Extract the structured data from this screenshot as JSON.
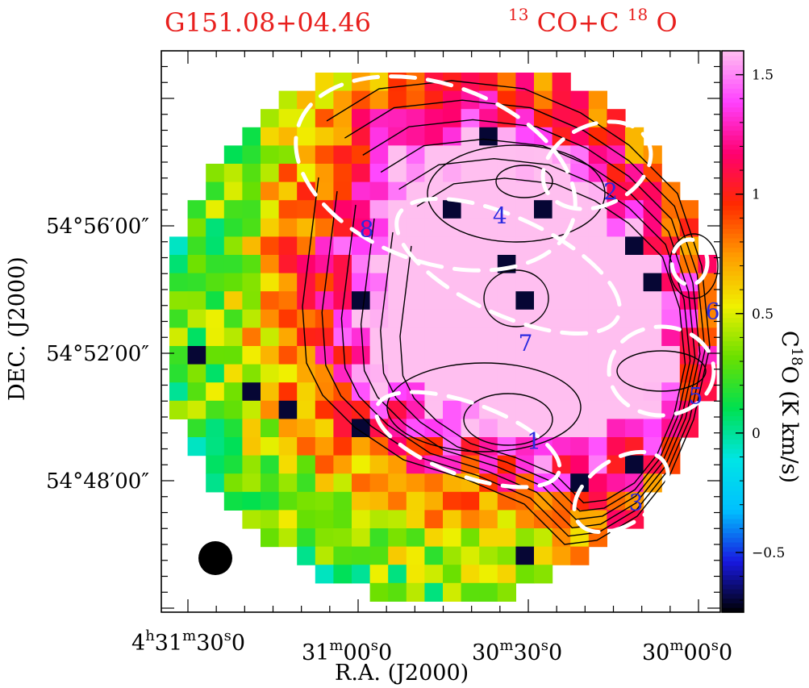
{
  "chart_data": {
    "type": "heatmap",
    "title_left": "G151.08+04.46",
    "title_right": {
      "base1": "13",
      "text1": "CO+C",
      "base2": "18",
      "text2": "O"
    },
    "xlabel": "R.A. (J2000)",
    "ylabel": "DEC. (J2000)",
    "colorbar_label": {
      "pre": "C",
      "sup": "18",
      "post": "O (K km/s)"
    },
    "colorbar_range": [
      -0.75,
      1.6
    ],
    "colorbar_ticks": [
      {
        "value": 1.5,
        "label": "1.5"
      },
      {
        "value": 1.0,
        "label": "1"
      },
      {
        "value": 0.5,
        "label": "0.5"
      },
      {
        "value": 0.0,
        "label": "0"
      },
      {
        "value": -0.5,
        "label": "−0.5"
      }
    ],
    "colormap": [
      "#000000",
      "#1818e0",
      "#00c0ff",
      "#00e5e5",
      "#00e050",
      "#6ae000",
      "#f0f000",
      "#ff9a00",
      "#ff2a00",
      "#ff0070",
      "#ff40ff",
      "#ffbff0"
    ],
    "contour_color": "#000000",
    "ellipse_color": "#ffffff",
    "x_ticks": [
      {
        "h": "4",
        "hsup": "h",
        "m": "31",
        "msup": "m",
        "s": "30",
        "ssup": "s",
        "frac": "0"
      },
      {
        "h": "",
        "hsup": "",
        "m": "31",
        "msup": "m",
        "s": "00",
        "ssup": "s",
        "frac": "0"
      },
      {
        "h": "",
        "hsup": "",
        "m": "30",
        "msup": "m",
        "s": "30",
        "ssup": "s",
        "frac": "0"
      },
      {
        "h": "",
        "hsup": "",
        "m": "30",
        "msup": "m",
        "s": "00",
        "ssup": "s",
        "frac": "0"
      }
    ],
    "y_ticks": [
      "54°56′00″",
      "54°52′00″",
      "54°48′00″"
    ],
    "core_labels": [
      {
        "id": "1",
        "ra": "4:30:29.0",
        "dec": "54:49:15"
      },
      {
        "id": "2",
        "ra": "4:30:15.5",
        "dec": "54:57:05"
      },
      {
        "id": "3",
        "ra": "4:30:11.0",
        "dec": "54:47:20"
      },
      {
        "id": "4",
        "ra": "4:30:35.0",
        "dec": "54:56:20"
      },
      {
        "id": "5",
        "ra": "4:30:00.5",
        "dec": "54:50:40"
      },
      {
        "id": "6",
        "ra": "4:29:57.5",
        "dec": "54:53:20"
      },
      {
        "id": "7",
        "ra": "4:30:30.5",
        "dec": "54:52:20"
      },
      {
        "id": "8",
        "ra": "4:30:58.5",
        "dec": "54:55:55"
      }
    ],
    "beam": "circle, filled, lower-left"
  }
}
